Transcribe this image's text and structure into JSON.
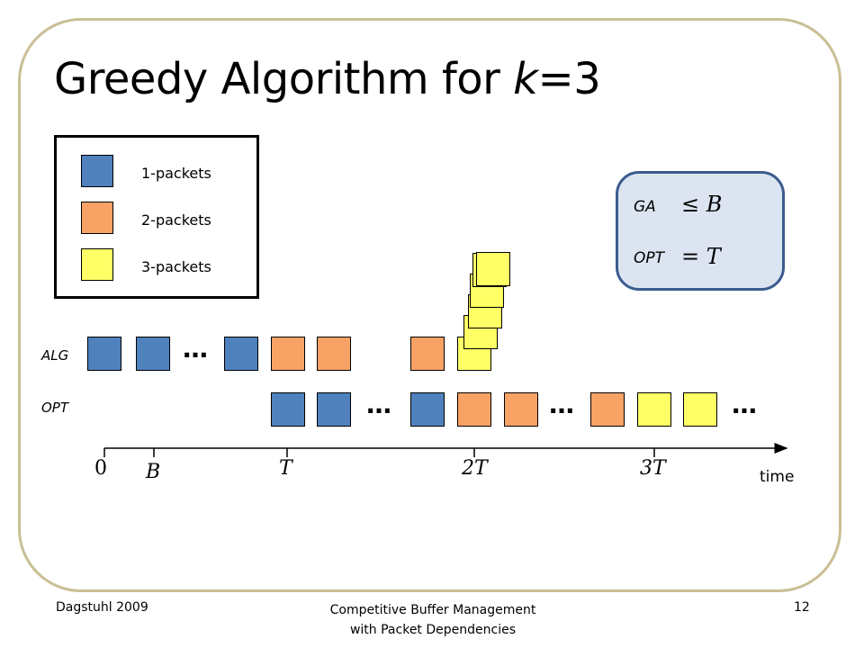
{
  "slide": {
    "title_prefix": "Greedy Algorithm for ",
    "title_var": "k",
    "title_suffix": "=3"
  },
  "legend": {
    "items": [
      {
        "label": "1-packets",
        "color": "#4f81bd"
      },
      {
        "label": "2-packets",
        "color": "#f9a266"
      },
      {
        "label": "3-packets",
        "color": "#ffff66"
      }
    ]
  },
  "info_box": {
    "ga_label": "GA",
    "ga_math": "≤ B",
    "opt_label": "OPT",
    "opt_math": "= T"
  },
  "rows": {
    "alg_label": "ALG",
    "opt_label": "OPT",
    "alg_sequence": [
      "1-packet",
      "1-packet",
      "…",
      "1-packet",
      "2-packet",
      "2-packet",
      "2-packet",
      "3-packet (stack of 6)"
    ],
    "opt_sequence": [
      "1-packet",
      "1-packet",
      "…",
      "1-packet",
      "2-packet",
      "2-packet",
      "…",
      "2-packet",
      "3-packet",
      "3-packet",
      "…"
    ]
  },
  "ellipsis": "…",
  "axis": {
    "ticks": [
      "0",
      "B",
      "T",
      "2T",
      "3T"
    ],
    "label": "time"
  },
  "footer": {
    "left": "Dagstuhl 2009",
    "center_line1": "Competitive Buffer Management",
    "center_line2": "with Packet Dependencies",
    "page": "12"
  }
}
